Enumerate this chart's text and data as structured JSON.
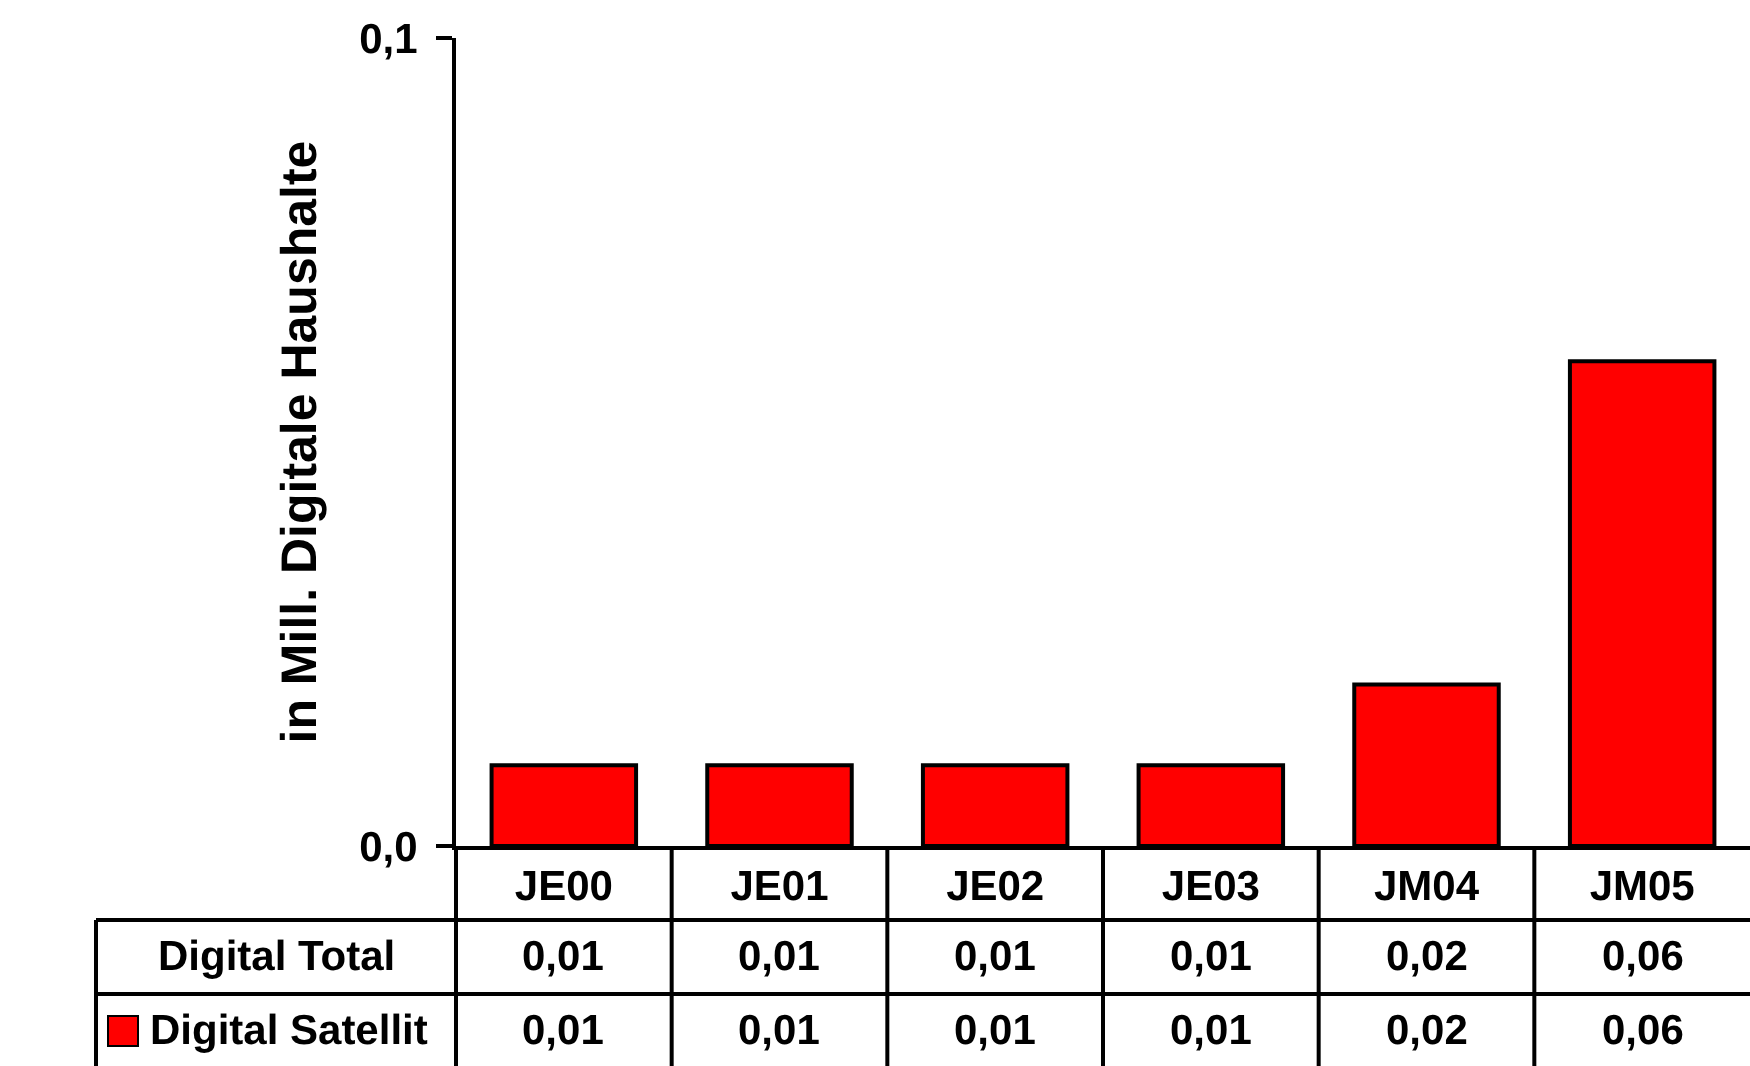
{
  "chart_data": {
    "type": "bar",
    "ylabel": "in Mill. Digitale Haushalte",
    "categories": [
      "JE00",
      "JE01",
      "JE02",
      "JE03",
      "JM04",
      "JM05"
    ],
    "series": [
      {
        "name": "Digital Satellit",
        "color": "#ff0000",
        "values": [
          0.01,
          0.01,
          0.01,
          0.01,
          0.02,
          0.06
        ],
        "value_labels": [
          "0,01",
          "0,01",
          "0,01",
          "0,01",
          "0,02",
          "0,06"
        ]
      }
    ],
    "totals": [
      "0,01",
      "0,01",
      "0,01",
      "0,01",
      "0,02",
      "0,06"
    ],
    "annotations": [
      "Digital Total"
    ],
    "ylim": [
      0,
      0.1
    ],
    "yticks": [
      {
        "value": 0,
        "label": "0,0"
      },
      {
        "value": 0.1,
        "label": "0,1"
      }
    ]
  }
}
